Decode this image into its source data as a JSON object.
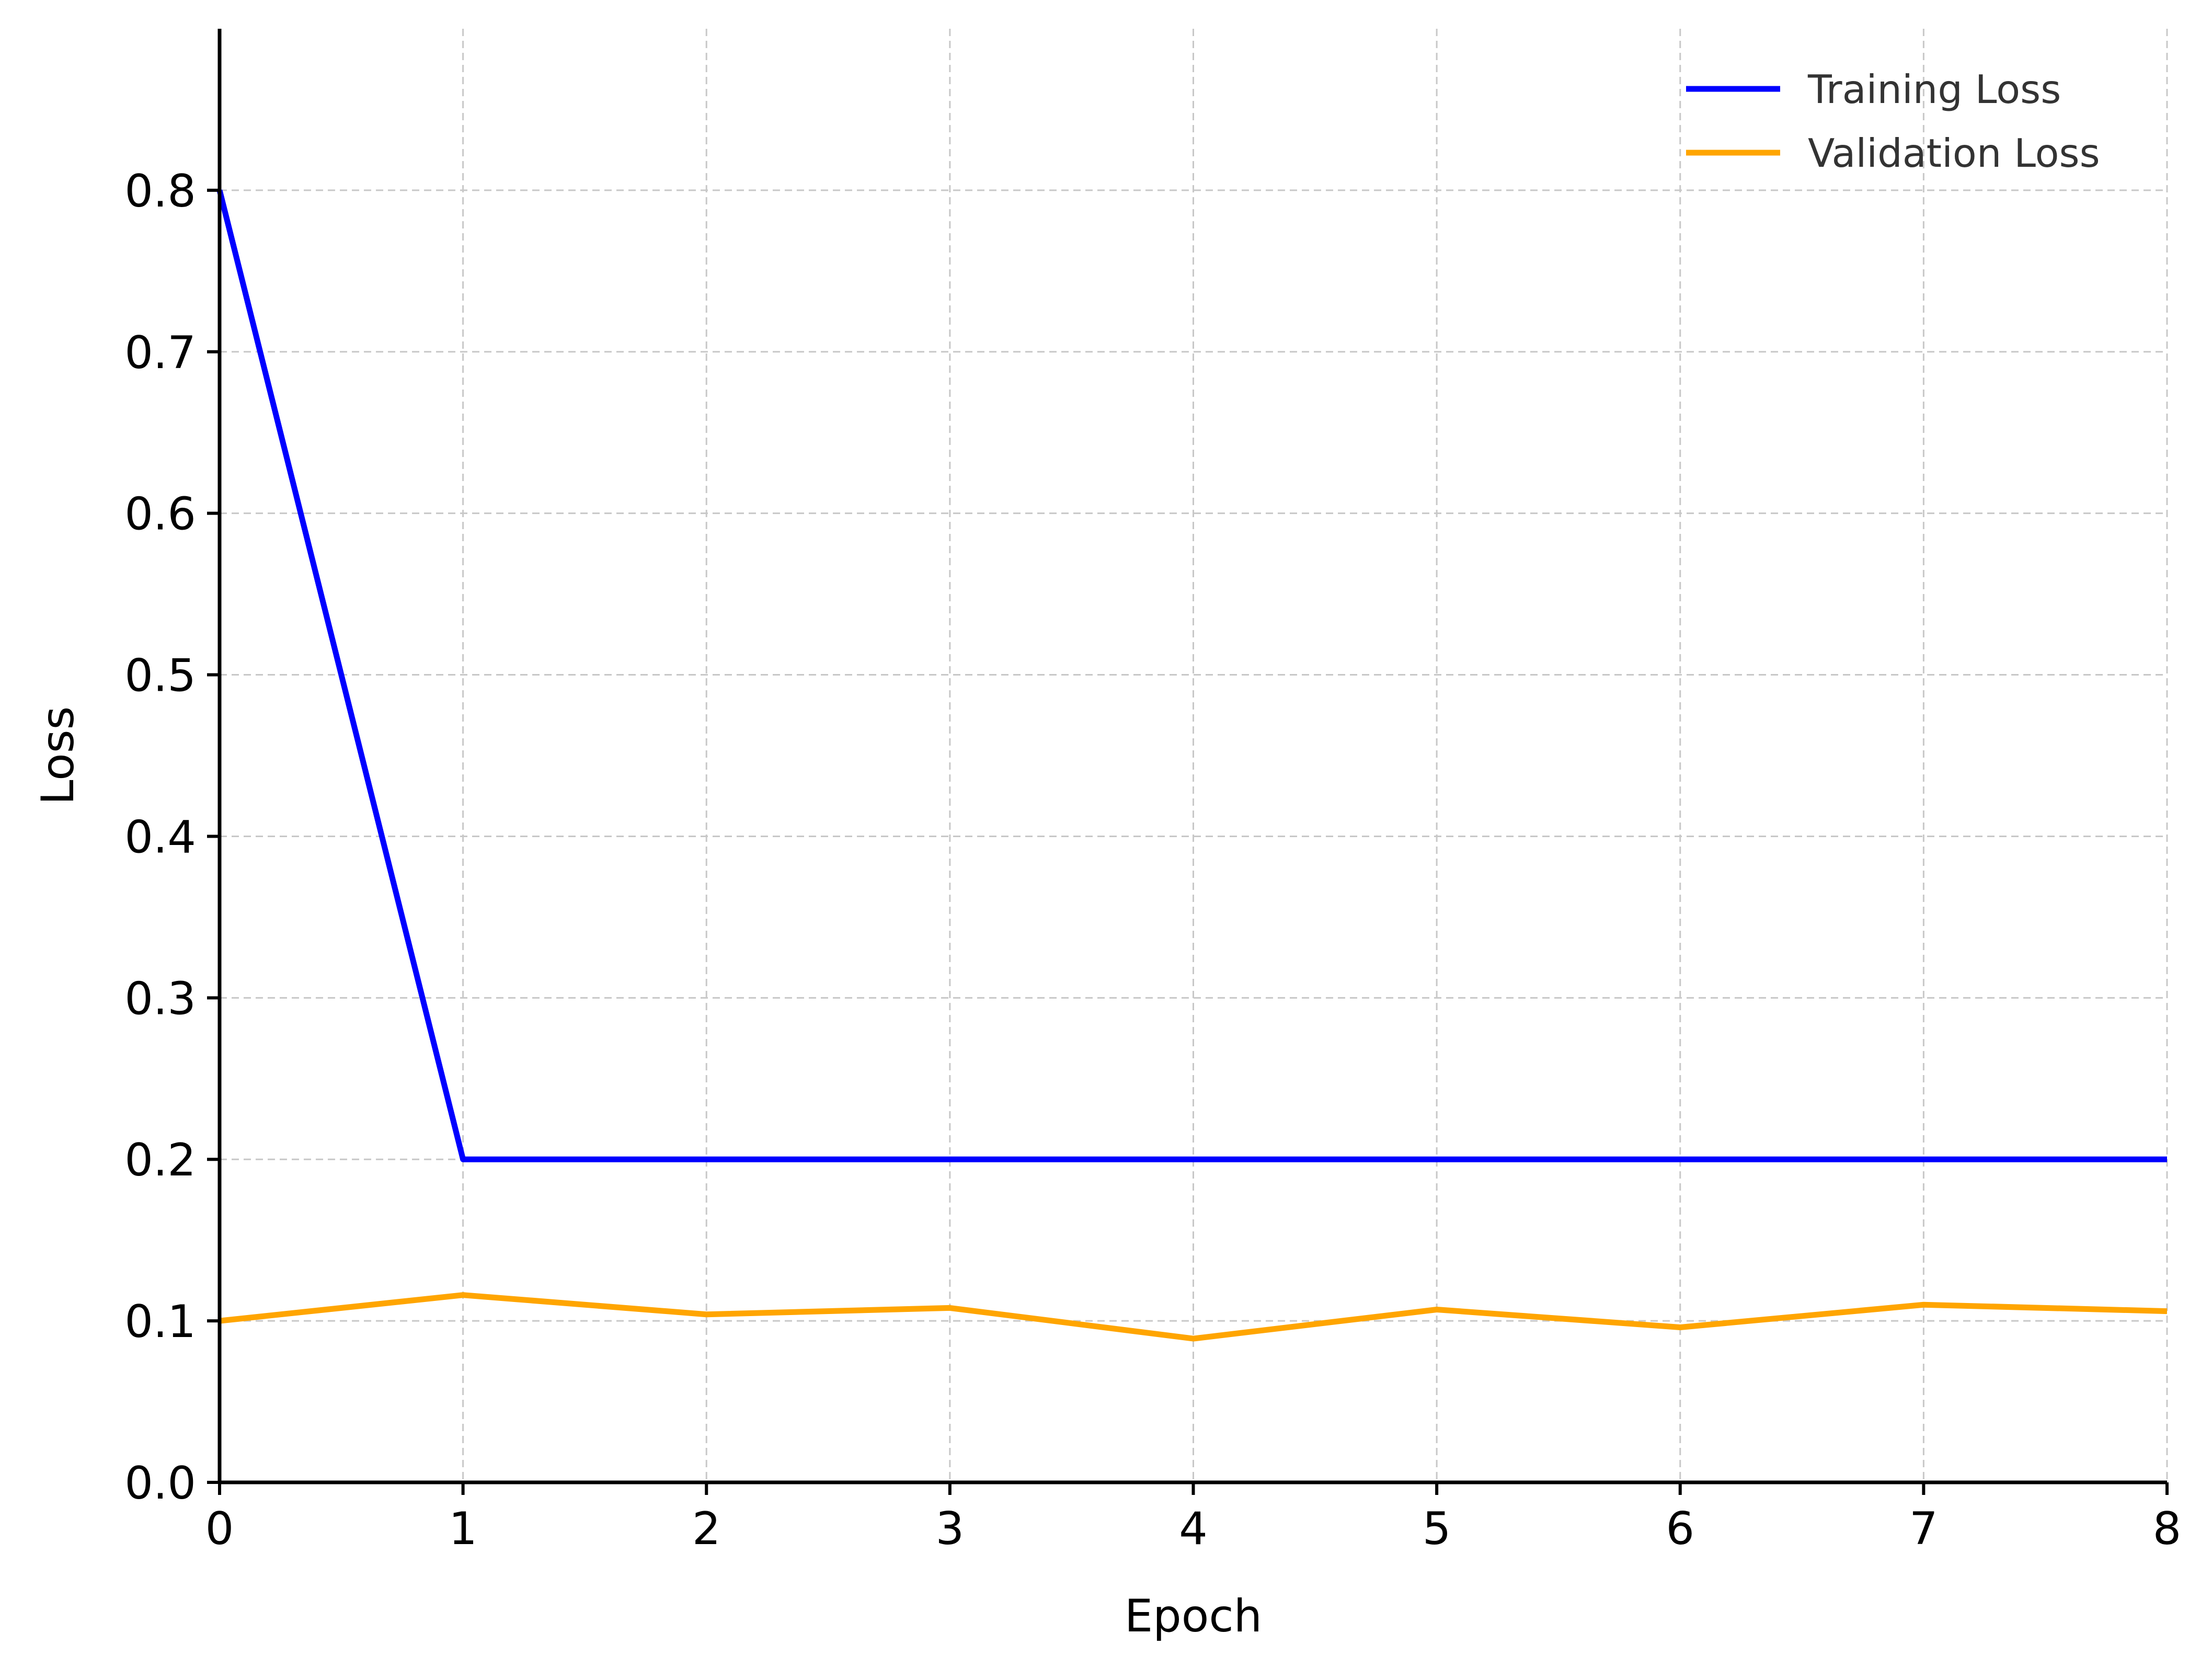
{
  "chart_data": {
    "type": "line",
    "title": "",
    "xlabel": "Epoch",
    "ylabel": "Loss",
    "xlim": [
      0,
      8
    ],
    "ylim": [
      0,
      0.9
    ],
    "x": [
      0,
      1,
      2,
      3,
      4,
      5,
      6,
      7,
      8
    ],
    "x_ticks": [
      "0",
      "1",
      "2",
      "3",
      "4",
      "5",
      "6",
      "7",
      "8"
    ],
    "y_ticks": [
      "0.0",
      "0.1",
      "0.2",
      "0.3",
      "0.4",
      "0.5",
      "0.6",
      "0.7",
      "0.8"
    ],
    "grid": true,
    "legend_position": "top-right",
    "series": [
      {
        "name": "Training Loss",
        "color": "#0000ff",
        "values": [
          0.8,
          0.2,
          0.2,
          0.2,
          0.2,
          0.2,
          0.2,
          0.2,
          0.2
        ]
      },
      {
        "name": "Validation Loss",
        "color": "#ffa500",
        "values": [
          0.1,
          0.116,
          0.104,
          0.108,
          0.089,
          0.107,
          0.096,
          0.11,
          0.106
        ]
      }
    ]
  }
}
